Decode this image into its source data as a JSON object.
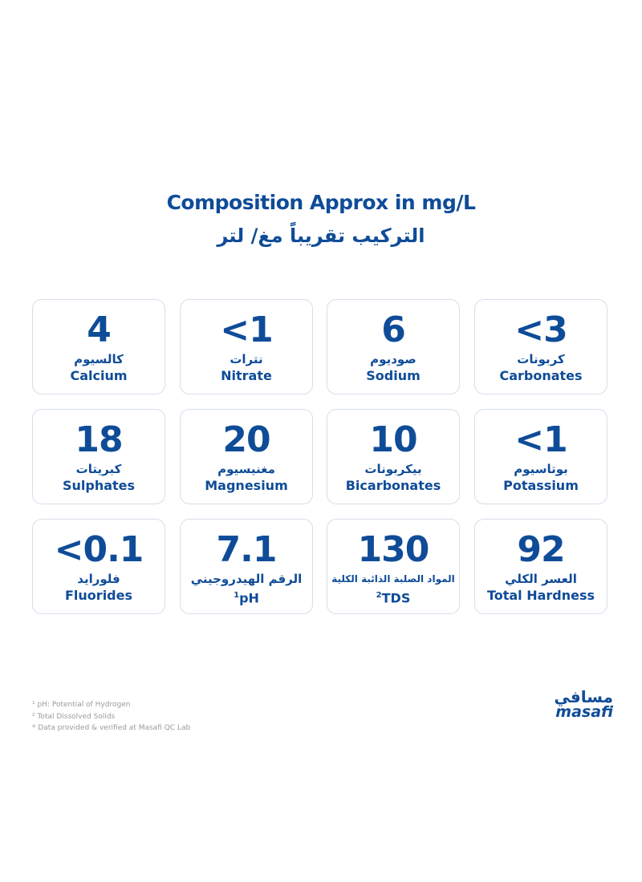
{
  "header": {
    "title_en": "Composition Approx in mg/L",
    "title_ar": "التركيب تقريباً مغ/ لتر"
  },
  "cards": [
    {
      "value": "4",
      "ar": "كالسيوم",
      "en": "Calcium",
      "sup": ""
    },
    {
      "value": "<1",
      "ar": "نترات",
      "en": "Nitrate",
      "sup": ""
    },
    {
      "value": "6",
      "ar": "صوديوم",
      "en": "Sodium",
      "sup": ""
    },
    {
      "value": "<3",
      "ar": "كربونات",
      "en": "Carbonates",
      "sup": ""
    },
    {
      "value": "18",
      "ar": "كبريتات",
      "en": "Sulphates",
      "sup": ""
    },
    {
      "value": "20",
      "ar": "مغنيسيوم",
      "en": "Magnesium",
      "sup": ""
    },
    {
      "value": "10",
      "ar": "بيكربونات",
      "en": "Bicarbonates",
      "sup": ""
    },
    {
      "value": "<1",
      "ar": "بوتاسيوم",
      "en": "Potassium",
      "sup": ""
    },
    {
      "value": "<0.1",
      "ar": "فلورايد",
      "en": "Fluorides",
      "sup": ""
    },
    {
      "value": "7.1",
      "ar": "الرقم الهيدروجيني",
      "en": "pH",
      "sup": "1"
    },
    {
      "value": "130",
      "ar": "المواد الصلبة الذائبة الكلية",
      "en": "TDS",
      "sup": "2"
    },
    {
      "value": "92",
      "ar": "العسر الكلي",
      "en": "Total Hardness",
      "sup": ""
    }
  ],
  "footnotes": [
    "¹ pH: Potential of Hydrogen",
    "² Total Dissolved Solids",
    "* Data provided & verified at Masafi QC Lab"
  ],
  "logo": {
    "ar": "مسافي",
    "en": "masafi"
  },
  "colors": {
    "brand": "#0f4c98",
    "border": "#d6deea",
    "footnote": "#9a9a9a"
  }
}
